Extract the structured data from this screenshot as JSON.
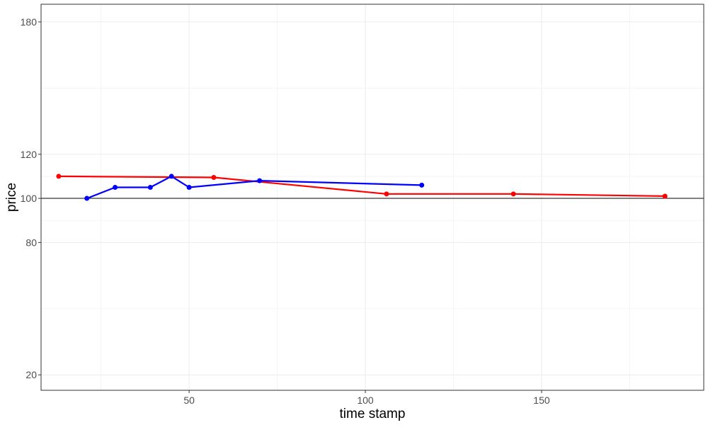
{
  "chart_data": {
    "type": "line",
    "title": "",
    "xlabel": "time stamp",
    "ylabel": "price",
    "xlim": [
      8,
      196
    ],
    "ylim": [
      13,
      188
    ],
    "x_ticks": [
      50,
      100,
      150
    ],
    "y_ticks": [
      20,
      80,
      100,
      120,
      180
    ],
    "x_minor_gridlines": [
      25,
      75,
      125,
      175
    ],
    "y_minor_gridlines": [
      50,
      90,
      110,
      150
    ],
    "reference_line_y": 100,
    "grid": true,
    "legend": "none",
    "series": [
      {
        "color": "#ff0000",
        "points": [
          {
            "x": 13,
            "y": 110
          },
          {
            "x": 57,
            "y": 109.5
          },
          {
            "x": 106,
            "y": 102
          },
          {
            "x": 142,
            "y": 102
          },
          {
            "x": 185,
            "y": 101
          }
        ]
      },
      {
        "color": "#0000ff",
        "points": [
          {
            "x": 21,
            "y": 100
          },
          {
            "x": 29,
            "y": 105
          },
          {
            "x": 39,
            "y": 105
          },
          {
            "x": 45,
            "y": 110
          },
          {
            "x": 50,
            "y": 105
          },
          {
            "x": 70,
            "y": 108
          },
          {
            "x": 116,
            "y": 106
          }
        ]
      }
    ]
  }
}
